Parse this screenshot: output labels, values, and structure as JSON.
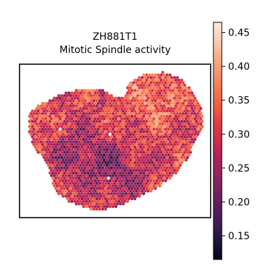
{
  "chart_data": {
    "type": "heatmap",
    "title": [
      "ZH881T1",
      "Mitotic Spindle activity"
    ],
    "xlabel": "",
    "ylabel": "",
    "grid": false,
    "colormap": "rocket",
    "colorbar": {
      "vmin": 0.115,
      "vmax": 0.465,
      "ticks": [
        0.15,
        0.2,
        0.25,
        0.3,
        0.35,
        0.4,
        0.45
      ],
      "tick_labels": [
        "0.15",
        "0.20",
        "0.25",
        "0.30",
        "0.35",
        "0.40",
        "0.45"
      ],
      "placement": "right"
    },
    "tissue_summary": {
      "overall_level": 0.3,
      "upper_right_lobe": 0.36,
      "center_left": 0.24,
      "lower_center": 0.23,
      "left_edge": 0.35
    }
  },
  "colors": {
    "cmap_stops": [
      "#03051a",
      "#1f1434",
      "#3b1c4f",
      "#581e5d",
      "#75215f",
      "#93245c",
      "#b0215a",
      "#cc2d51",
      "#e13b42",
      "#ef5b3f",
      "#f37751",
      "#f5946b",
      "#f6b18c",
      "#f9d0b8",
      "#faebdd"
    ],
    "hole": "#ffffff",
    "frame": "#000000"
  }
}
